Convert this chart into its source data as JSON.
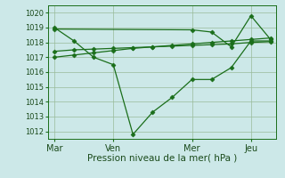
{
  "background_color": "#cce8e8",
  "plot_bg_color": "#cce8e8",
  "grid_color": "#99bb99",
  "line_color": "#1a6e1a",
  "xlabel": "Pression niveau de la mer( hPa )",
  "ylim": [
    1011.5,
    1020.5
  ],
  "yticks": [
    1012,
    1013,
    1014,
    1015,
    1016,
    1017,
    1018,
    1019,
    1020
  ],
  "xtick_labels": [
    "Mar",
    "Ven",
    "Mer",
    "Jeu"
  ],
  "xtick_positions": [
    0,
    3,
    7,
    10
  ],
  "xlim": [
    -0.3,
    11.3
  ],
  "series1_x": [
    0,
    1,
    2,
    3,
    4,
    5,
    6,
    7,
    8,
    9,
    10,
    11
  ],
  "series1_y": [
    1019.0,
    1018.1,
    1017.0,
    1016.5,
    1011.8,
    1013.3,
    1014.3,
    1015.5,
    1015.5,
    1016.3,
    1018.1,
    1018.1
  ],
  "series2_x": [
    0,
    1,
    2,
    3,
    4,
    5,
    6,
    7,
    8,
    9,
    10,
    11
  ],
  "series2_y": [
    1017.0,
    1017.15,
    1017.3,
    1017.45,
    1017.6,
    1017.7,
    1017.8,
    1017.9,
    1018.0,
    1018.1,
    1018.2,
    1018.3
  ],
  "series3_x": [
    0,
    1,
    2,
    3,
    4,
    5,
    6,
    7,
    8,
    9,
    10,
    11
  ],
  "series3_y": [
    1017.4,
    1017.5,
    1017.55,
    1017.6,
    1017.65,
    1017.7,
    1017.75,
    1017.8,
    1017.85,
    1017.9,
    1018.0,
    1018.05
  ],
  "series4_x": [
    0,
    7,
    8,
    9,
    10,
    11
  ],
  "series4_y": [
    1018.9,
    1018.85,
    1018.7,
    1017.7,
    1019.8,
    1018.2
  ],
  "ytick_fontsize": 6,
  "xtick_fontsize": 7,
  "xlabel_fontsize": 7.5,
  "lw": 0.9,
  "ms": 2.5
}
